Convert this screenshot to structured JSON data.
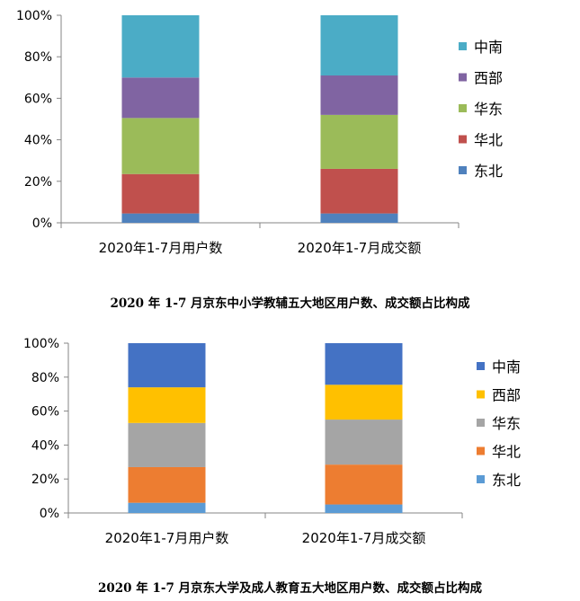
{
  "chart_data": [
    {
      "type": "bar",
      "stacked": true,
      "percent": true,
      "title": "2020 年 1-7 月京东中小学教辅五大地区用户数、成交额占比构成",
      "categories": [
        "2020年1-7月用户数",
        "2020年1-7月成交额"
      ],
      "yticks": [
        "0%",
        "20%",
        "40%",
        "60%",
        "80%",
        "100%"
      ],
      "ylim": [
        0,
        100
      ],
      "legend_position": "right",
      "series": [
        {
          "name": "东北",
          "color": "#4f81bd",
          "values": [
            4.5,
            4.5
          ]
        },
        {
          "name": "华北",
          "color": "#c0504d",
          "values": [
            19,
            21.5
          ]
        },
        {
          "name": "华东",
          "color": "#9bbb59",
          "values": [
            27,
            26
          ]
        },
        {
          "name": "西部",
          "color": "#8064a2",
          "values": [
            19.5,
            19
          ]
        },
        {
          "name": "中南",
          "color": "#4bacc6",
          "values": [
            30,
            29
          ]
        }
      ]
    },
    {
      "type": "bar",
      "stacked": true,
      "percent": true,
      "title": "2020 年 1-7 月京东大学及成人教育五大地区用户数、成交额占比构成",
      "categories": [
        "2020年1-7月用户数",
        "2020年1-7月成交额"
      ],
      "yticks": [
        "0%",
        "20%",
        "40%",
        "60%",
        "80%",
        "100%"
      ],
      "ylim": [
        0,
        100
      ],
      "legend_position": "right",
      "series": [
        {
          "name": "东北",
          "color": "#5b9bd5",
          "values": [
            6,
            5
          ]
        },
        {
          "name": "华北",
          "color": "#ed7d31",
          "values": [
            21,
            23.5
          ]
        },
        {
          "name": "华东",
          "color": "#a5a5a5",
          "values": [
            26,
            26.5
          ]
        },
        {
          "name": "西部",
          "color": "#ffc000",
          "values": [
            21,
            20.5
          ]
        },
        {
          "name": "中南",
          "color": "#4472c4",
          "values": [
            26,
            24.5
          ]
        }
      ]
    }
  ]
}
